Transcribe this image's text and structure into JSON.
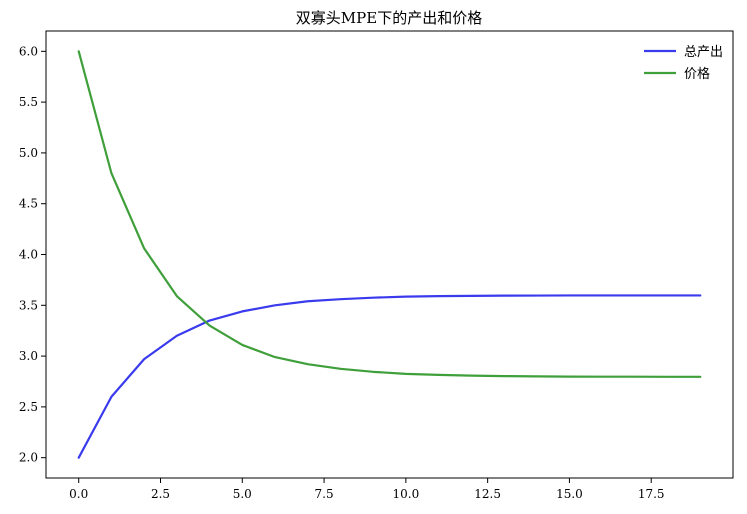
{
  "chart_data": {
    "type": "line",
    "title": "双寡头MPE下的产出和价格",
    "xlabel": "",
    "ylabel": "",
    "xlim": [
      -1.0,
      20.0
    ],
    "ylim": [
      1.8,
      6.2
    ],
    "xticks": [
      0.0,
      2.5,
      5.0,
      7.5,
      10.0,
      12.5,
      15.0,
      17.5
    ],
    "xtick_labels": [
      "0.0",
      "2.5",
      "5.0",
      "7.5",
      "10.0",
      "12.5",
      "15.0",
      "17.5"
    ],
    "yticks": [
      2.0,
      2.5,
      3.0,
      3.5,
      4.0,
      4.5,
      5.0,
      5.5,
      6.0
    ],
    "ytick_labels": [
      "2.0",
      "2.5",
      "3.0",
      "3.5",
      "4.0",
      "4.5",
      "5.0",
      "5.5",
      "6.0"
    ],
    "grid": false,
    "legend_position": "top-right",
    "x": [
      0,
      1,
      2,
      3,
      4,
      5,
      6,
      7,
      8,
      9,
      10,
      11,
      12,
      13,
      14,
      15,
      16,
      17,
      18,
      19
    ],
    "series": [
      {
        "name": "总产出",
        "color": "#3b3bee",
        "values": [
          2.0,
          2.6,
          2.97,
          3.2,
          3.35,
          3.44,
          3.5,
          3.54,
          3.56,
          3.575,
          3.585,
          3.59,
          3.593,
          3.595,
          3.596,
          3.597,
          3.597,
          3.597,
          3.597,
          3.597
        ]
      },
      {
        "name": "价格",
        "color": "#3f9f3a",
        "values": [
          6.0,
          4.8,
          4.06,
          3.59,
          3.3,
          3.11,
          2.99,
          2.92,
          2.875,
          2.845,
          2.825,
          2.815,
          2.808,
          2.803,
          2.8,
          2.798,
          2.797,
          2.797,
          2.796,
          2.796
        ]
      }
    ]
  }
}
